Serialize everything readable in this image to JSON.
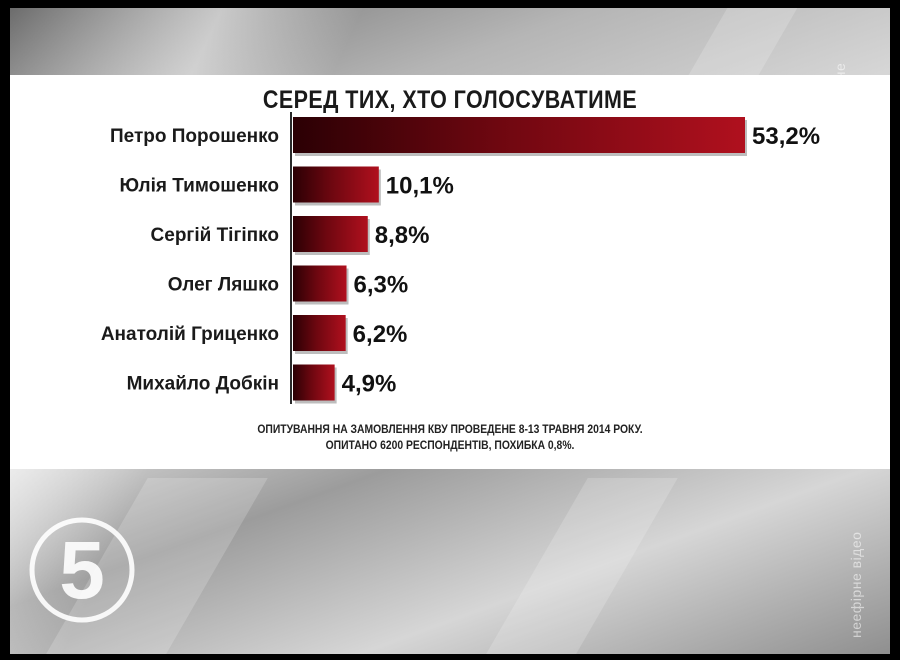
{
  "chart_data": {
    "type": "bar",
    "orientation": "horizontal",
    "title": "СЕРЕД ТИХ, ХТО ГОЛОСУВАТИМЕ",
    "categories": [
      "Петро Порошенко",
      "Юлія Тимошенко",
      "Сергій Тігіпко",
      "Олег Ляшко",
      "Анатолій Гриценко",
      "Михайло Добкін"
    ],
    "values": [
      53.2,
      10.1,
      8.8,
      6.3,
      6.2,
      4.9
    ],
    "labels": [
      "53,2%",
      "10,1%",
      "8,8%",
      "6,3%",
      "6,2%",
      "4,9%"
    ],
    "unit": "%",
    "bar_color": "#8b0a14",
    "grid": false
  },
  "footnote": {
    "line1": "ОПИТУВАННЯ НА ЗАМОВЛЕННЯ КВУ ПРОВЕДЕНЕ 8-13 ТРАВНЯ 2014 РОКУ.",
    "line2": "ОПИТАНО 6200 РЕСПОНДЕНТІВ, ПОХИБКА 0,8%."
  },
  "watermark_text": "неефірне відео",
  "channel_logo": {
    "text": "5",
    "icon": "channel-5-logo"
  }
}
